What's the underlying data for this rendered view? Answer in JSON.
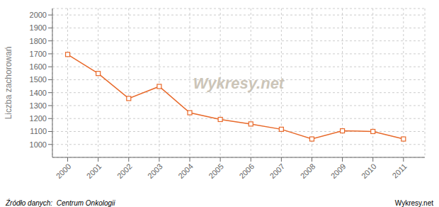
{
  "chart_data": {
    "type": "line",
    "x": [
      2000,
      2001,
      2002,
      2003,
      2004,
      2005,
      2006,
      2007,
      2008,
      2009,
      2010,
      2011
    ],
    "values": [
      1695,
      1548,
      1355,
      1448,
      1245,
      1193,
      1158,
      1117,
      1042,
      1105,
      1100,
      1042
    ],
    "color": "#e8692a",
    "marker": "square",
    "ylabel": "Liczba zachorowań",
    "xlim": [
      1999.5,
      2011.7
    ],
    "xticks": [
      2000,
      2001,
      2002,
      2003,
      2004,
      2005,
      2006,
      2007,
      2008,
      2009,
      2010,
      2011
    ],
    "ylim": [
      900,
      2050
    ],
    "yticks": [
      1000,
      1100,
      1200,
      1300,
      1400,
      1500,
      1600,
      1700,
      1800,
      1900,
      2000
    ],
    "grid": true,
    "annotations": [
      "Wykresy.net",
      "Źródło danych:  Centrum Onkologii",
      "Wykresy.net"
    ]
  }
}
